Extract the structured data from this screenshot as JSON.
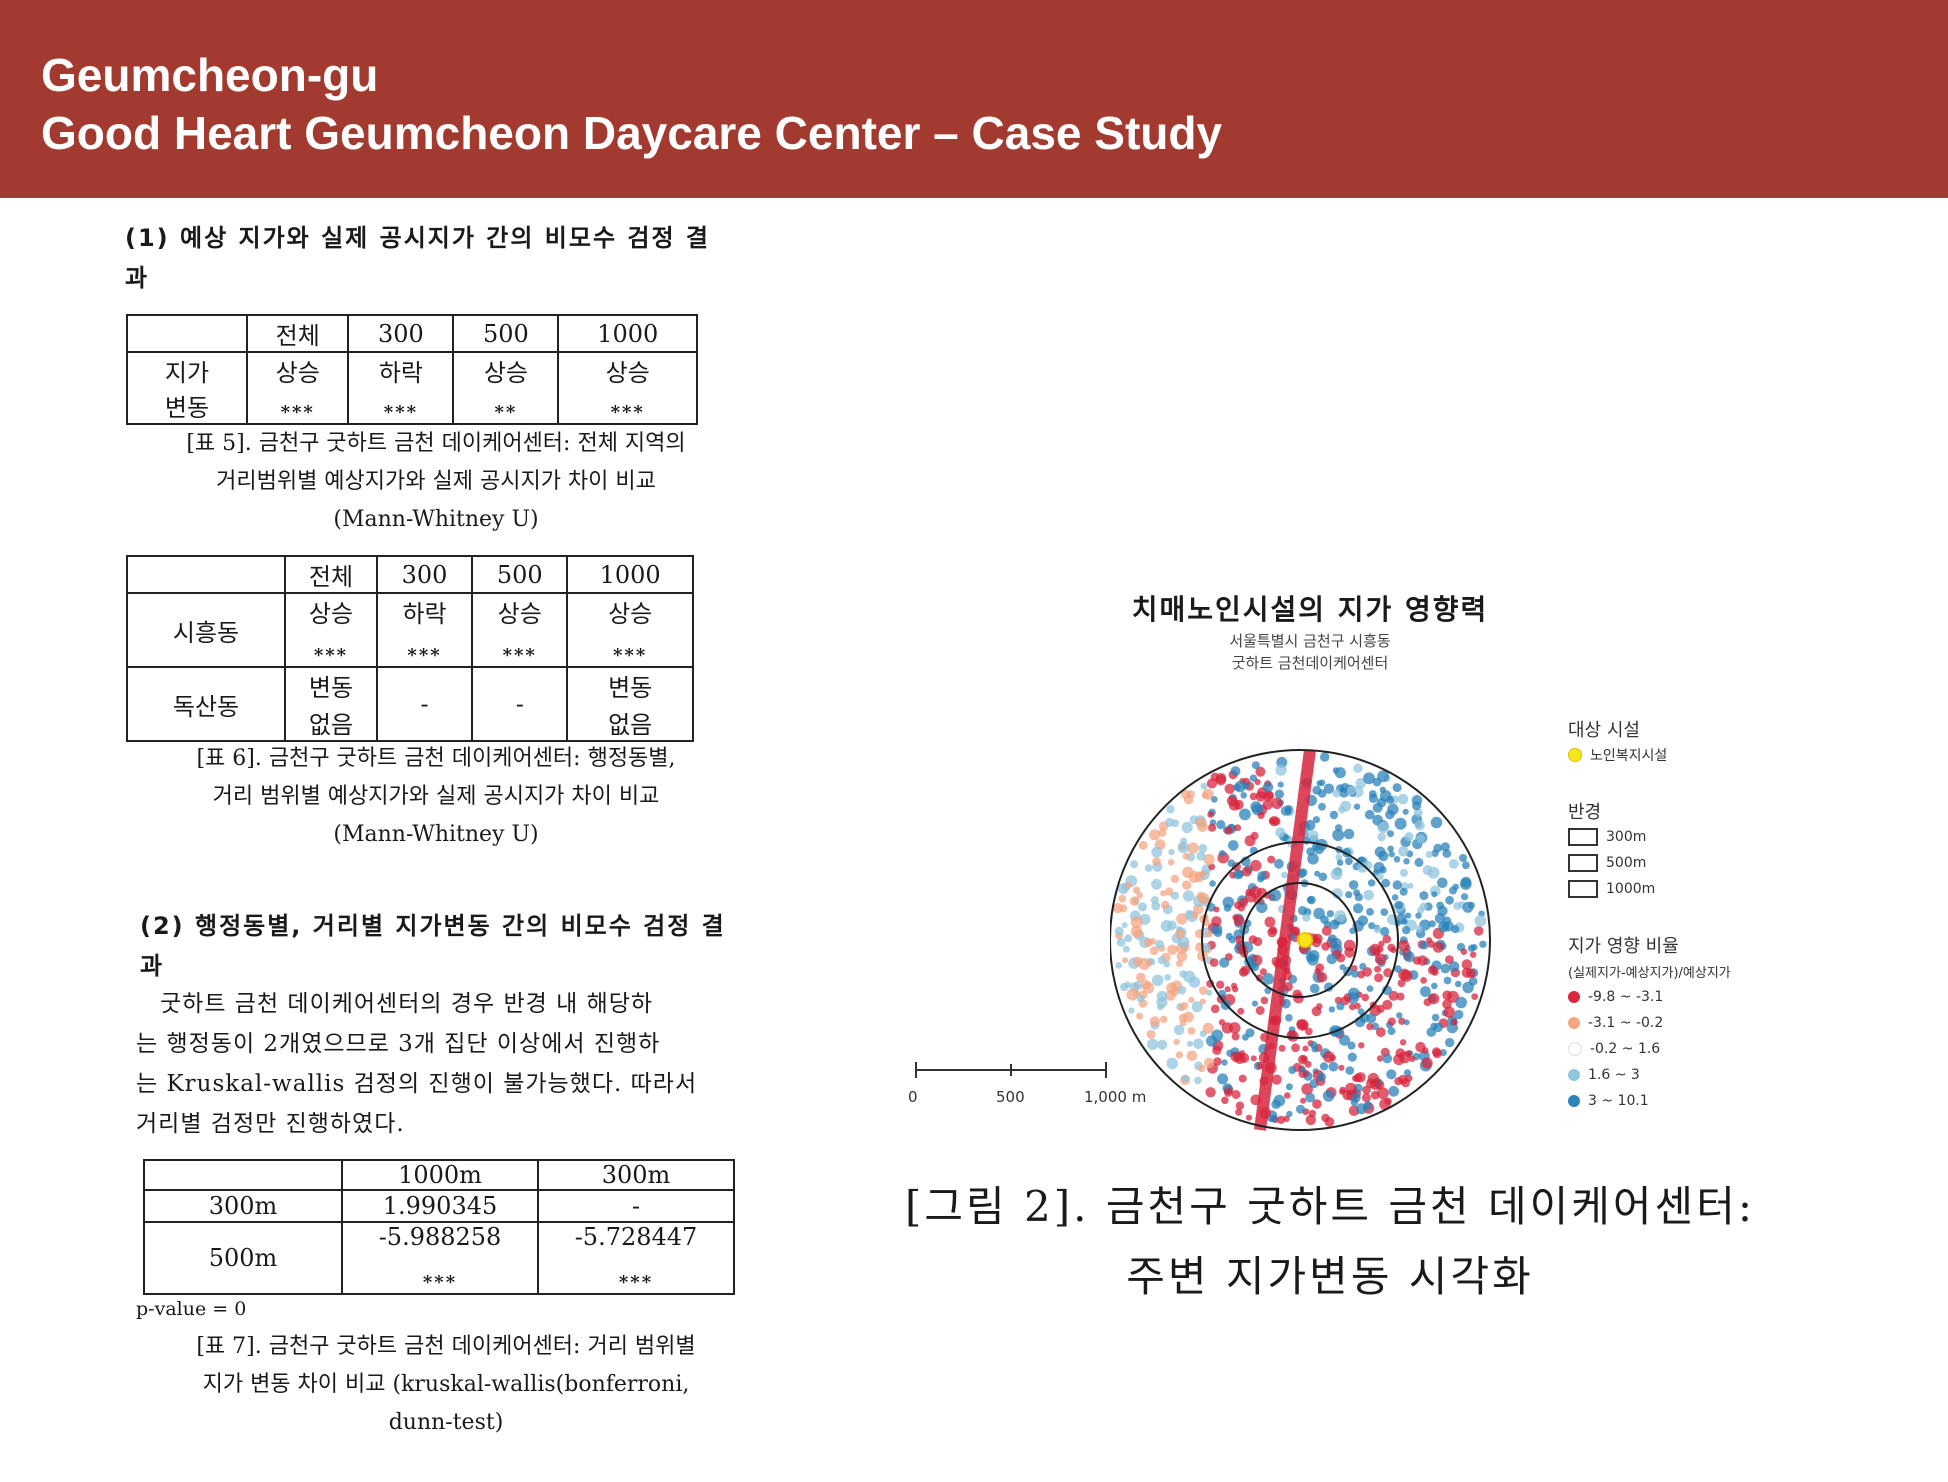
{
  "header": {
    "line1": "Geumcheon-gu",
    "line2": "Good Heart Geumcheon Daycare Center – Case Study",
    "bg_color": "#a33a30"
  },
  "section1": {
    "title_line1": "(1) 예상 지가와 실제 공시지가 간의 비모수 검정 결",
    "title_line2": "과"
  },
  "table5": {
    "headers": [
      "",
      "전체",
      "300",
      "500",
      "1000"
    ],
    "row_label_top": "지가",
    "row_label_bottom": "변동",
    "values": [
      "상승",
      "하락",
      "상승",
      "상승"
    ],
    "significance": [
      "***",
      "***",
      "**",
      "***"
    ]
  },
  "caption5": {
    "line1": "[표 5]. 금천구 굿하트 금천 데이케어센터: 전체 지역의",
    "line2": "거리범위별 예상지가와 실제 공시지가 차이 비교",
    "line3": "(Mann-Whitney U)"
  },
  "table6": {
    "headers": [
      "",
      "전체",
      "300",
      "500",
      "1000"
    ],
    "rows": [
      {
        "label": "시흥동",
        "cells": [
          {
            "top": "상승",
            "bottom": "***"
          },
          {
            "top": "하락",
            "bottom": "***"
          },
          {
            "top": "상승",
            "bottom": "***"
          },
          {
            "top": "상승",
            "bottom": "***"
          }
        ]
      },
      {
        "label": "독산동",
        "cells": [
          {
            "top": "변동",
            "bottom": "없음"
          },
          {
            "mid": "-"
          },
          {
            "mid": "-"
          },
          {
            "top": "변동",
            "bottom": "없음"
          }
        ]
      }
    ]
  },
  "caption6": {
    "line1": "[표 6]. 금천구 굿하트 금천 데이케어센터: 행정동별,",
    "line2": "거리 범위별 예상지가와 실제 공시지가 차이 비교",
    "line3": "(Mann-Whitney U)"
  },
  "section2": {
    "title_line1": "(2) 행정동별, 거리별 지가변동 간의 비모수 검정 결",
    "title_line2": "과",
    "para": [
      "굿하트 금천 데이케어센터의 경우 반경 내 해당하",
      "는 행정동이 2개였으므로 3개 집단 이상에서 진행하",
      "는 Kruskal-wallis 검정의 진행이 불가능했다. 따라서",
      "거리별 검정만 진행하였다."
    ]
  },
  "table7": {
    "headers": [
      "",
      "1000m",
      "300m"
    ],
    "row1": {
      "label": "300m",
      "c1": "1.990345",
      "c2": "-"
    },
    "row2": {
      "label": "500m",
      "c1": "-5.988258",
      "c1s": "***",
      "c2": "-5.728447",
      "c2s": "***"
    },
    "note": "p-value = 0"
  },
  "caption7": {
    "line1": "[표 7]. 금천구 굿하트 금천 데이케어센터: 거리 범위별",
    "line2": "지가 변동 차이 비교 (kruskal-wallis(bonferroni,",
    "line3": "dunn-test)"
  },
  "figure": {
    "title": "치매노인시설의 지가 영향력",
    "sub1": "서울특별시 금천구 시흥동",
    "sub2": "굿하트 금천데이케어센터",
    "legend": {
      "facility_title": "대상 시설",
      "facility_item": "노인복지시설",
      "radius_title": "반경",
      "radii": [
        "300m",
        "500m",
        "1000m"
      ],
      "ratio_title": "지가 영향 비율",
      "ratio_formula": "(실제지가-예상지가)/예상지가",
      "classes": [
        {
          "label": "-9.8 ~ -3.1",
          "color": "#d7263d"
        },
        {
          "label": "-3.1 ~ -0.2",
          "color": "#f4a582"
        },
        {
          "label": "-0.2 ~ 1.6",
          "color": "#ffffff"
        },
        {
          "label": "1.6 ~ 3",
          "color": "#92c5de"
        },
        {
          "label": "3 ~ 10.1",
          "color": "#2b83ba"
        }
      ]
    },
    "scale": [
      "0",
      "500",
      "1,000 m"
    ]
  },
  "figure_caption": {
    "line1": "[그림 2]. 금천구 굿하트 금천 데이케어센터:",
    "line2": "주변 지가변동 시각화"
  }
}
